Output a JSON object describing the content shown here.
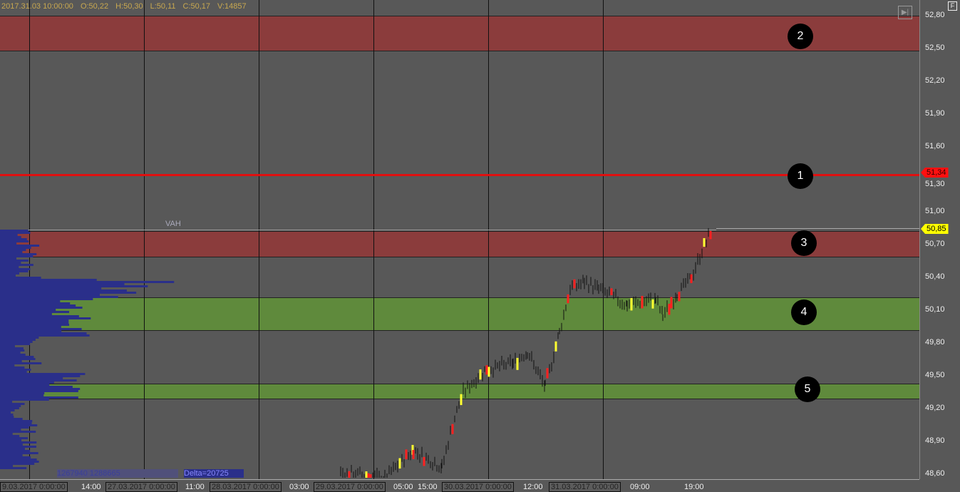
{
  "header": {
    "datetime": "2017.31.03 10:00:00",
    "open": "O:50,22",
    "high": "H:50,30",
    "low": "L:50,11",
    "close": "C:50,17",
    "volume": "V:14857"
  },
  "price_axis": [
    "52,80",
    "52,50",
    "52,20",
    "51,90",
    "51,60",
    "51,30",
    "51,00",
    "50,70",
    "50,40",
    "50,10",
    "49,80",
    "49,50",
    "49,20",
    "48,90",
    "48,60"
  ],
  "price_tags": {
    "red_line": "51,34",
    "last_price": "50,85"
  },
  "vah_label": "VAH",
  "profile": {
    "volumes": "1267940 1288665",
    "delta": "Delta=20725"
  },
  "zone_markers": [
    "2",
    "1",
    "3",
    "4",
    "5"
  ],
  "time_labels": [
    "14:00",
    "11:00",
    "03:00",
    "19:00",
    "05:00",
    "15:00",
    "12:00",
    "09:00",
    "19:00"
  ],
  "date_labels": [
    "9.03.2017 0:00:00",
    "27.03.2017 0:00:00",
    "28.03.2017 0:00:00",
    "29.03.2017 0:00:00",
    "30.03.2017 0:00:00",
    "31.03.2017 0:00:00"
  ],
  "buttons": {
    "scroll_end": "▶|",
    "f": "F"
  },
  "colors": {
    "red_zone": "#8b3c3c",
    "green_zone": "#5f8a3c",
    "red_line": "#e01010",
    "profile": "#2a2f8a",
    "last_tag": "#ffff00"
  }
}
